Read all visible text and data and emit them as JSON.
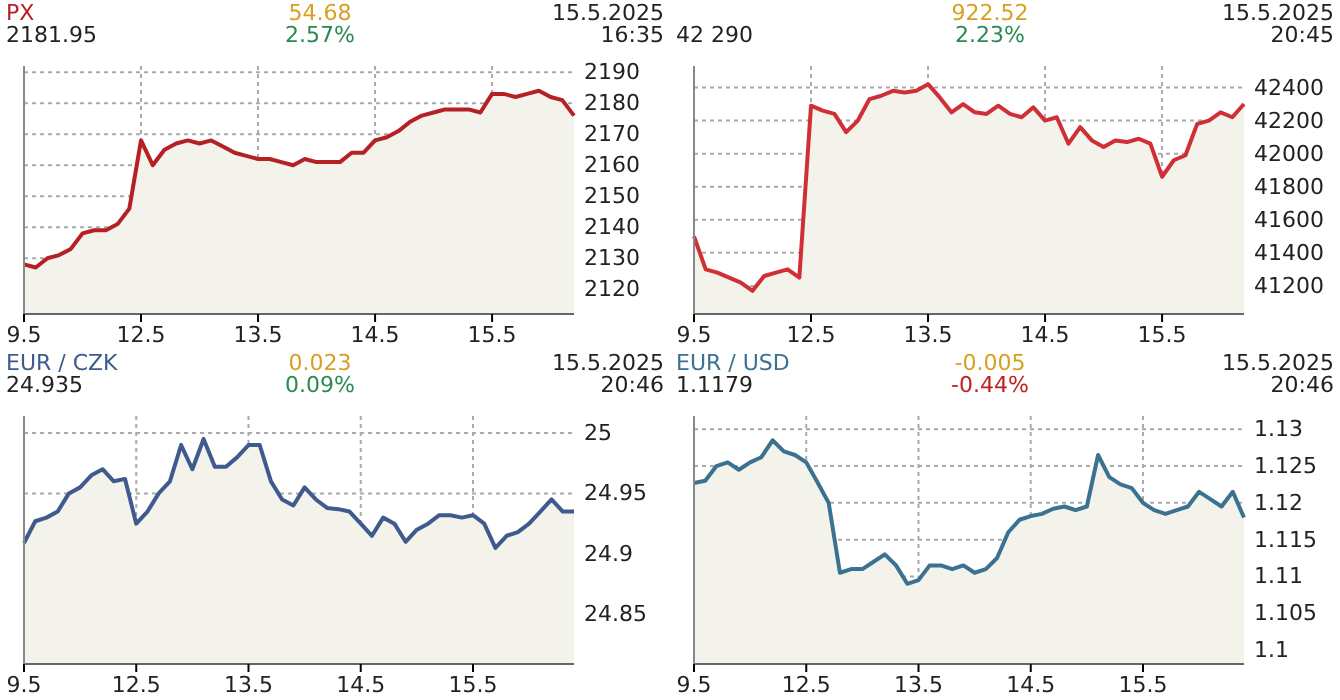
{
  "chart_data": [
    {
      "type": "area",
      "title": "PX",
      "annotations": [
        "2181.95",
        "54.68",
        "2.57%",
        "15.5.2025",
        "16:35"
      ],
      "color": "#b52025",
      "categories": [
        "9.5",
        null,
        null,
        null,
        null,
        null,
        null,
        null,
        null,
        null,
        "12.5",
        null,
        null,
        null,
        null,
        null,
        null,
        null,
        null,
        null,
        "13.5",
        null,
        null,
        null,
        null,
        null,
        null,
        null,
        null,
        null,
        "14.5",
        null,
        null,
        null,
        null,
        null,
        null,
        null,
        null,
        null,
        "15.5",
        null,
        null,
        null,
        null,
        null,
        null,
        null
      ],
      "values": [
        2128,
        2127,
        2130,
        2131,
        2133,
        2138,
        2139,
        2139,
        2141,
        2146,
        2168,
        2160,
        2165,
        2167,
        2168,
        2167,
        2168,
        2166,
        2164,
        2163,
        2162,
        2162,
        2161,
        2160,
        2162,
        2161,
        2161,
        2161,
        2164,
        2164,
        2168,
        2169,
        2171,
        2174,
        2176,
        2177,
        2178,
        2178,
        2178,
        2177,
        2183,
        2183,
        2182,
        2183,
        2184,
        2182,
        2181,
        2176
      ],
      "ylim": [
        2112,
        2192
      ],
      "yticks": [
        2120,
        2130,
        2140,
        2150,
        2160,
        2170,
        2180,
        2190
      ],
      "grid": true
    },
    {
      "type": "area",
      "annotations": [
        "42 290",
        "922.52",
        "2.23%",
        "15.5.2025",
        "20:45"
      ],
      "color": "#d03035",
      "categories": [
        "9.5",
        null,
        null,
        null,
        null,
        null,
        null,
        null,
        null,
        null,
        "12.5",
        null,
        null,
        null,
        null,
        null,
        null,
        null,
        null,
        null,
        "13.5",
        null,
        null,
        null,
        null,
        null,
        null,
        null,
        null,
        null,
        "14.5",
        null,
        null,
        null,
        null,
        null,
        null,
        null,
        null,
        null,
        "15.5",
        null,
        null,
        null,
        null,
        null,
        null,
        null
      ],
      "values": [
        41500,
        41300,
        41280,
        41250,
        41220,
        41170,
        41260,
        41280,
        41300,
        41250,
        42290,
        42260,
        42240,
        42130,
        42200,
        42330,
        42350,
        42380,
        42370,
        42380,
        42420,
        42340,
        42250,
        42300,
        42250,
        42240,
        42290,
        42240,
        42220,
        42280,
        42200,
        42220,
        42060,
        42160,
        42080,
        42040,
        42080,
        42070,
        42090,
        42060,
        41860,
        41960,
        41990,
        42180,
        42200,
        42250,
        42220,
        42300
      ],
      "ylim": [
        41030,
        42530
      ],
      "yticks": [
        41200,
        41400,
        41600,
        41800,
        42000,
        42200,
        42400
      ],
      "grid": true
    },
    {
      "type": "area",
      "title": "EUR / CZK",
      "annotations": [
        "24.935",
        "0.023",
        "0.09%",
        "15.5.2025",
        "20:46"
      ],
      "color": "#3f5b8d",
      "categories": [
        "9.5",
        null,
        null,
        null,
        null,
        null,
        null,
        null,
        null,
        null,
        "12.5",
        null,
        null,
        null,
        null,
        null,
        null,
        null,
        null,
        null,
        "13.5",
        null,
        null,
        null,
        null,
        null,
        null,
        null,
        null,
        null,
        "14.5",
        null,
        null,
        null,
        null,
        null,
        null,
        null,
        null,
        null,
        "15.5",
        null,
        null,
        null,
        null,
        null,
        null,
        null,
        null,
        null
      ],
      "values": [
        24.909,
        24.927,
        24.93,
        24.935,
        24.95,
        24.955,
        24.965,
        24.97,
        24.96,
        24.962,
        24.925,
        24.935,
        24.95,
        24.96,
        24.99,
        24.97,
        24.995,
        24.972,
        24.972,
        24.98,
        24.99,
        24.99,
        24.96,
        24.945,
        24.94,
        24.955,
        24.945,
        24.938,
        24.937,
        24.935,
        24.925,
        24.915,
        24.93,
        24.925,
        24.91,
        24.92,
        24.925,
        24.932,
        24.932,
        24.93,
        24.932,
        24.925,
        24.905,
        24.915,
        24.918,
        24.925,
        24.935,
        24.945,
        24.935,
        24.935
      ],
      "ylim": [
        24.809,
        25.014
      ],
      "yticks": [
        24.85,
        24.9,
        24.95,
        25
      ],
      "grid": true
    },
    {
      "type": "area",
      "title": "EUR / USD",
      "annotations": [
        "1.1179",
        "-0.005",
        "-0.44%",
        "15.5.2025",
        "20:46"
      ],
      "color": "#3b7191",
      "categories": [
        "9.5",
        null,
        null,
        null,
        null,
        null,
        null,
        null,
        null,
        null,
        "12.5",
        null,
        null,
        null,
        null,
        null,
        null,
        null,
        null,
        null,
        "13.5",
        null,
        null,
        null,
        null,
        null,
        null,
        null,
        null,
        null,
        "14.5",
        null,
        null,
        null,
        null,
        null,
        null,
        null,
        null,
        null,
        "15.5",
        null,
        null,
        null,
        null,
        null,
        null,
        null,
        null,
        null
      ],
      "values": [
        1.1227,
        1.123,
        1.125,
        1.1255,
        1.1245,
        1.1255,
        1.1262,
        1.1285,
        1.127,
        1.1265,
        1.1255,
        1.1228,
        1.12,
        1.1105,
        1.111,
        1.111,
        1.112,
        1.113,
        1.1115,
        1.109,
        1.1095,
        1.1115,
        1.1115,
        1.111,
        1.1115,
        1.1105,
        1.111,
        1.1125,
        1.116,
        1.1177,
        1.1182,
        1.1185,
        1.1192,
        1.1195,
        1.119,
        1.1195,
        1.1265,
        1.1235,
        1.1225,
        1.122,
        1.12,
        1.119,
        1.1185,
        1.119,
        1.1195,
        1.1215,
        1.1205,
        1.1195,
        1.1215,
        1.118
      ],
      "ylim": [
        1.0981,
        1.1318
      ],
      "yticks": [
        1.1,
        1.105,
        1.11,
        1.115,
        1.12,
        1.125,
        1.13
      ],
      "grid": true
    }
  ]
}
